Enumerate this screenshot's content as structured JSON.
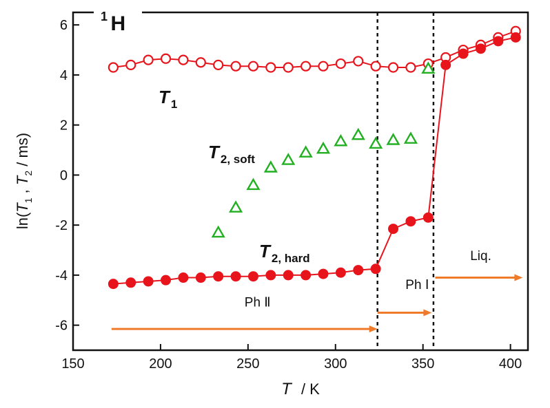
{
  "chart_data": {
    "type": "scatter",
    "xlabel_symbol": "T",
    "xlabel_unit": "/  K",
    "ylabel_parts": [
      "ln(",
      "T",
      "1",
      " , ",
      "T",
      "2",
      " / ms)"
    ],
    "xlim": [
      150,
      410
    ],
    "ylim": [
      -7,
      6.5
    ],
    "x_ticks": [
      150,
      200,
      250,
      300,
      350,
      400
    ],
    "y_ticks": [
      6,
      4,
      2,
      0,
      -2,
      -4,
      -6
    ],
    "grid": false,
    "nucleus": {
      "sup": "1",
      "label": "H"
    },
    "series": [
      {
        "name": "T1",
        "label_main": "T",
        "label_sub": "1",
        "marker": "open-circle",
        "color": "#e8141c",
        "connected": true,
        "x": [
          173,
          183,
          193,
          203,
          213,
          223,
          233,
          243,
          253,
          263,
          273,
          283,
          293,
          303,
          313,
          323,
          333,
          343,
          353,
          363,
          373,
          383,
          393,
          403
        ],
        "y": [
          4.3,
          4.4,
          4.6,
          4.65,
          4.6,
          4.5,
          4.4,
          4.35,
          4.35,
          4.3,
          4.3,
          4.35,
          4.35,
          4.45,
          4.55,
          4.35,
          4.3,
          4.3,
          4.45,
          4.7,
          5.0,
          5.2,
          5.5,
          5.75
        ]
      },
      {
        "name": "T2, soft",
        "label_main": "T",
        "label_sub": "2, soft",
        "marker": "open-triangle",
        "color": "#22b022",
        "connected": false,
        "x": [
          233,
          243,
          253,
          263,
          273,
          283,
          293,
          303,
          313,
          323,
          333,
          343,
          353
        ],
        "y": [
          -2.3,
          -1.3,
          -0.4,
          0.3,
          0.6,
          0.9,
          1.05,
          1.35,
          1.6,
          1.25,
          1.4,
          1.45,
          4.25
        ]
      },
      {
        "name": "T2, hard",
        "label_main": "T",
        "label_sub": "2, hard",
        "marker": "filled-circle",
        "color": "#e8141c",
        "connected": true,
        "x": [
          173,
          183,
          193,
          203,
          213,
          223,
          233,
          243,
          253,
          263,
          273,
          283,
          293,
          303,
          313,
          323,
          333,
          343,
          353,
          363,
          373,
          383,
          393,
          403
        ],
        "y": [
          -4.35,
          -4.3,
          -4.25,
          -4.2,
          -4.1,
          -4.1,
          -4.05,
          -4.05,
          -4.05,
          -4.0,
          -4.0,
          -4.0,
          -3.95,
          -3.9,
          -3.8,
          -3.75,
          -2.15,
          -1.85,
          -1.7,
          4.4,
          4.85,
          5.05,
          5.35,
          5.5
        ]
      }
    ],
    "vlines": [
      324,
      356
    ],
    "phases": [
      {
        "label": "Ph  Ⅱ",
        "x_start": 172,
        "x_end": 324,
        "label_x": 248,
        "label_y": -5.25,
        "arrow_y": -6.15
      },
      {
        "label": "Ph  Ⅰ",
        "x_start": 324,
        "x_end": 355,
        "label_x": 340,
        "label_y": -4.55,
        "arrow_y": -5.5
      },
      {
        "label": "Liq.",
        "x_start": 357,
        "x_end": 407,
        "label_x": 377,
        "label_y": -3.4,
        "arrow_y": -4.1
      }
    ],
    "arrow_color": "#ef7a2a"
  }
}
